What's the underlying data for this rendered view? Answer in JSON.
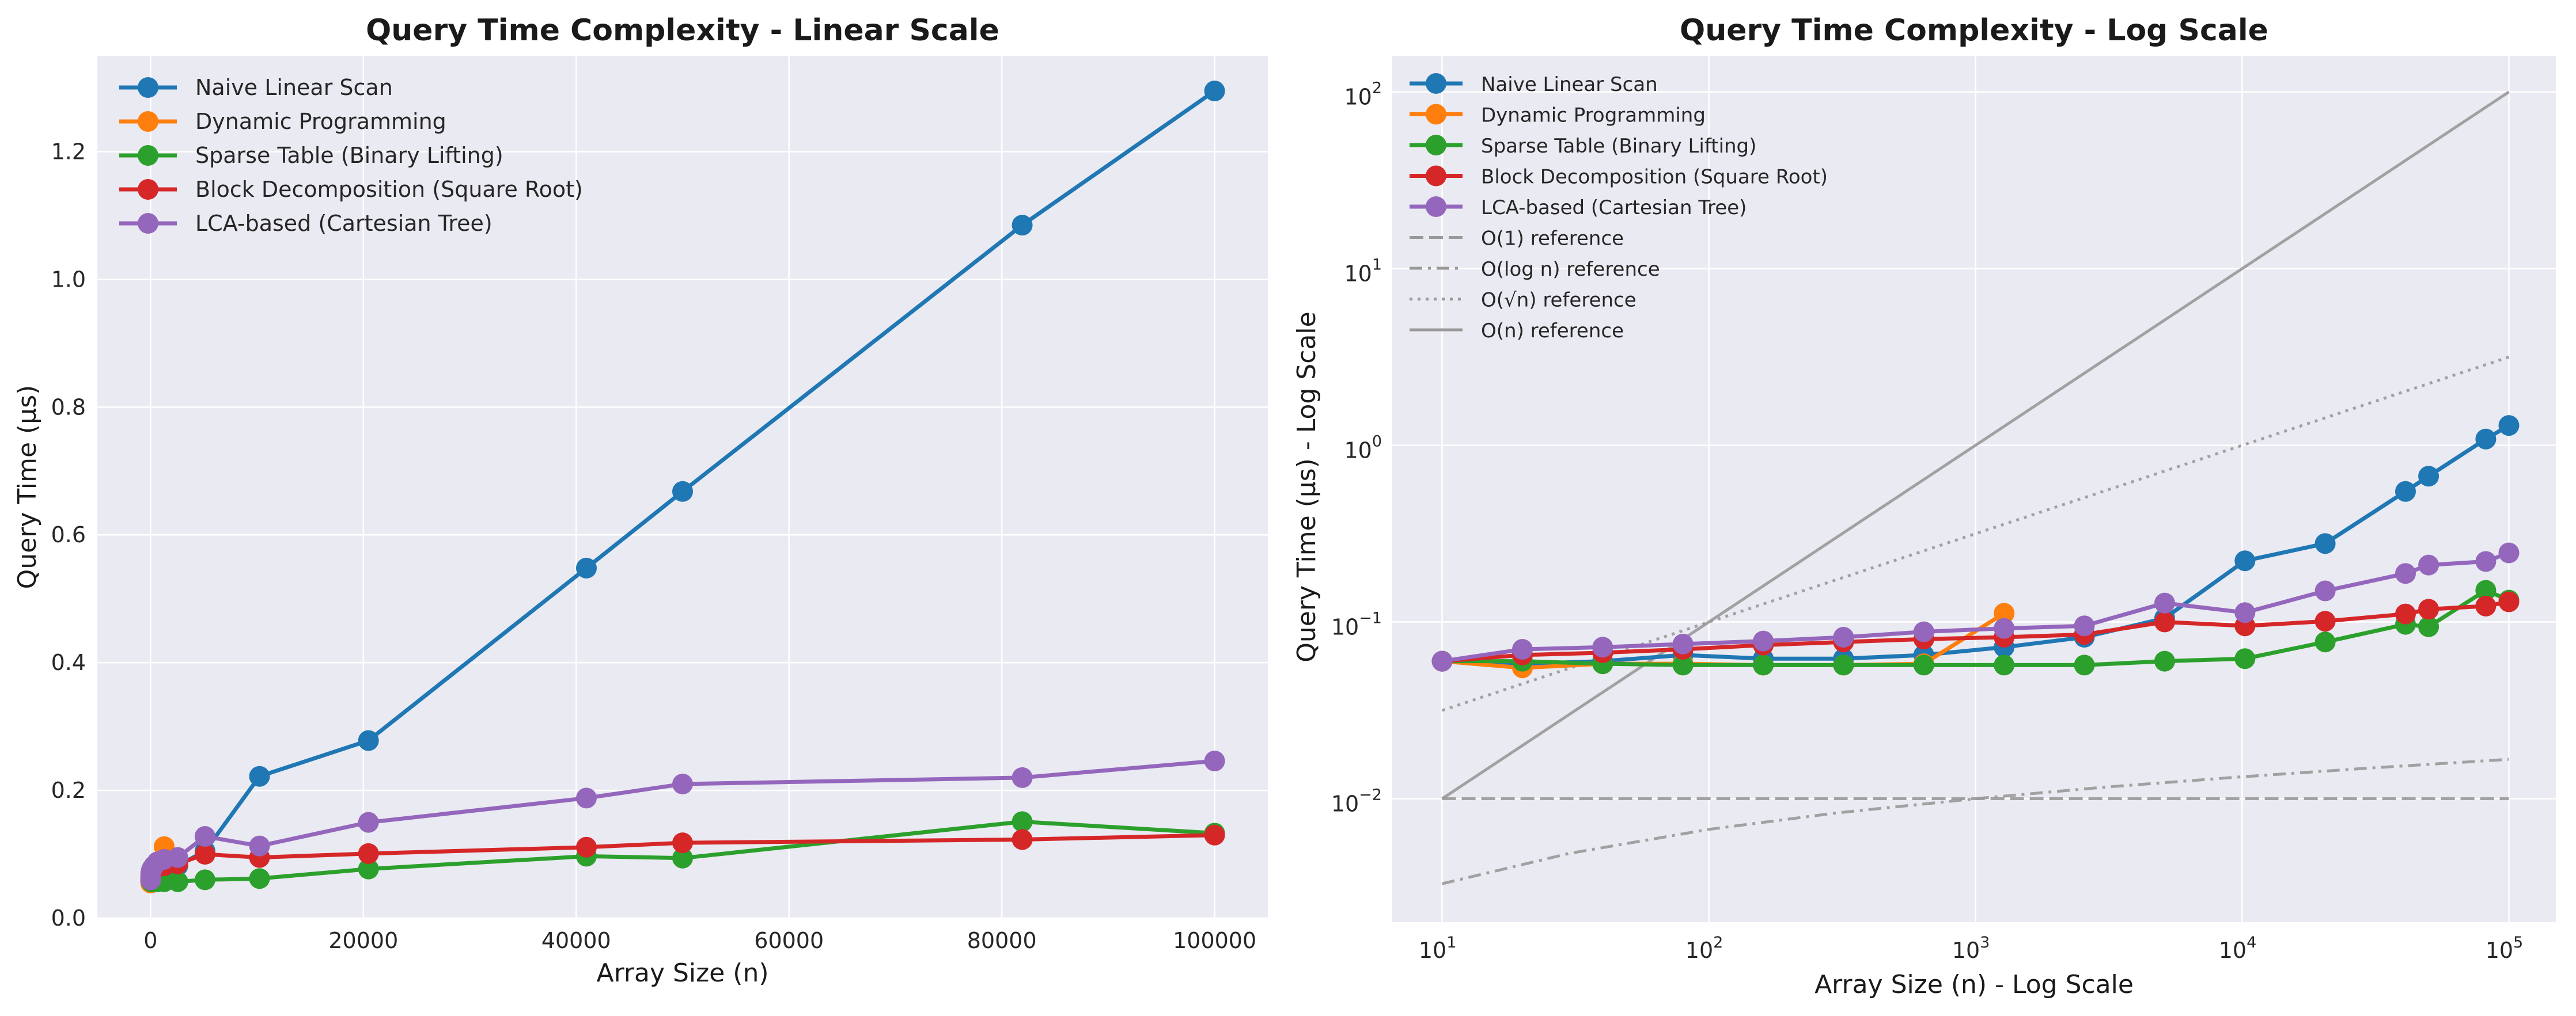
{
  "chart_data": [
    {
      "type": "line",
      "title": "Query Time Complexity - Linear Scale",
      "xlabel": "Array Size (n)",
      "ylabel": "Query Time (µs)",
      "xscale": "linear",
      "yscale": "linear",
      "xlim": [
        -5000,
        105000
      ],
      "ylim": [
        0,
        1.35
      ],
      "xticks": [
        0,
        20000,
        40000,
        60000,
        80000,
        100000
      ],
      "xtick_labels": [
        "0",
        "20000",
        "40000",
        "60000",
        "80000",
        "100000"
      ],
      "yticks": [
        0,
        0.2,
        0.4,
        0.6,
        0.8,
        1.0,
        1.2
      ],
      "ytick_labels": [
        "0.0",
        "0.2",
        "0.4",
        "0.6",
        "0.8",
        "1.0",
        "1.2"
      ],
      "grid": true,
      "legend_position": "top-left",
      "series": [
        {
          "name": "Naive Linear Scan",
          "color": "#1f77b4",
          "x": [
            10,
            20,
            40,
            80,
            160,
            320,
            640,
            1280,
            2560,
            5120,
            10240,
            20480,
            40960,
            50000,
            81920,
            100000
          ],
          "y": [
            0.06,
            0.058,
            0.06,
            0.065,
            0.062,
            0.062,
            0.065,
            0.072,
            0.082,
            0.105,
            0.222,
            0.278,
            0.548,
            0.668,
            1.085,
            1.295
          ]
        },
        {
          "name": "Dynamic Programming",
          "color": "#ff7f0e",
          "x": [
            10,
            20,
            40,
            80,
            160,
            320,
            640,
            1280
          ],
          "y": [
            0.06,
            0.055,
            0.058,
            0.058,
            0.057,
            0.057,
            0.058,
            0.112
          ]
        },
        {
          "name": "Sparse Table (Binary Lifting)",
          "color": "#2ca02c",
          "x": [
            10,
            20,
            40,
            80,
            160,
            320,
            640,
            1280,
            2560,
            5120,
            10240,
            20480,
            40960,
            50000,
            81920,
            100000
          ],
          "y": [
            0.06,
            0.06,
            0.058,
            0.057,
            0.057,
            0.057,
            0.057,
            0.057,
            0.057,
            0.06,
            0.062,
            0.077,
            0.097,
            0.094,
            0.151,
            0.133
          ]
        },
        {
          "name": "Block Decomposition (Square Root)",
          "color": "#d62728",
          "x": [
            10,
            20,
            40,
            80,
            160,
            320,
            640,
            1280,
            2560,
            5120,
            10240,
            20480,
            40960,
            50000,
            81920,
            100000
          ],
          "y": [
            0.06,
            0.065,
            0.067,
            0.07,
            0.074,
            0.077,
            0.08,
            0.082,
            0.085,
            0.1,
            0.095,
            0.101,
            0.111,
            0.118,
            0.123,
            0.13
          ]
        },
        {
          "name": "LCA-based (Cartesian Tree)",
          "color": "#9467bd",
          "x": [
            10,
            20,
            40,
            80,
            160,
            320,
            640,
            1280,
            2560,
            5120,
            10240,
            20480,
            40960,
            50000,
            81920,
            100000
          ],
          "y": [
            0.06,
            0.07,
            0.072,
            0.075,
            0.078,
            0.082,
            0.088,
            0.092,
            0.095,
            0.128,
            0.113,
            0.15,
            0.188,
            0.21,
            0.22,
            0.246
          ]
        }
      ]
    },
    {
      "type": "line",
      "title": "Query Time Complexity - Log Scale",
      "xlabel": "Array Size (n) - Log Scale",
      "ylabel": "Query Time (µs) - Log Scale",
      "xscale": "log",
      "yscale": "log",
      "xlim": [
        6.5,
        150000
      ],
      "ylim": [
        0.002,
        160
      ],
      "xticks": [
        10,
        100,
        1000,
        10000,
        100000
      ],
      "xtick_exponents": [
        "1",
        "2",
        "3",
        "4",
        "5"
      ],
      "yticks": [
        0.01,
        0.1,
        1,
        10,
        100
      ],
      "ytick_exponents": [
        "−2",
        "−1",
        "0",
        "1",
        "2"
      ],
      "tick_base": "10",
      "grid": true,
      "legend_position": "top-left",
      "series": [
        {
          "name": "Naive Linear Scan",
          "color": "#1f77b4",
          "x": [
            10,
            20,
            40,
            80,
            160,
            320,
            640,
            1280,
            2560,
            5120,
            10240,
            20480,
            40960,
            50000,
            81920,
            100000
          ],
          "y": [
            0.06,
            0.058,
            0.06,
            0.065,
            0.062,
            0.062,
            0.065,
            0.072,
            0.082,
            0.105,
            0.222,
            0.278,
            0.548,
            0.668,
            1.085,
            1.295
          ]
        },
        {
          "name": "Dynamic Programming",
          "color": "#ff7f0e",
          "x": [
            10,
            20,
            40,
            80,
            160,
            320,
            640,
            1280
          ],
          "y": [
            0.06,
            0.055,
            0.058,
            0.058,
            0.057,
            0.057,
            0.058,
            0.112
          ]
        },
        {
          "name": "Sparse Table (Binary Lifting)",
          "color": "#2ca02c",
          "x": [
            10,
            20,
            40,
            80,
            160,
            320,
            640,
            1280,
            2560,
            5120,
            10240,
            20480,
            40960,
            50000,
            81920,
            100000
          ],
          "y": [
            0.06,
            0.06,
            0.058,
            0.057,
            0.057,
            0.057,
            0.057,
            0.057,
            0.057,
            0.06,
            0.062,
            0.077,
            0.097,
            0.094,
            0.151,
            0.133
          ]
        },
        {
          "name": "Block Decomposition (Square Root)",
          "color": "#d62728",
          "x": [
            10,
            20,
            40,
            80,
            160,
            320,
            640,
            1280,
            2560,
            5120,
            10240,
            20480,
            40960,
            50000,
            81920,
            100000
          ],
          "y": [
            0.06,
            0.065,
            0.067,
            0.07,
            0.074,
            0.077,
            0.08,
            0.082,
            0.085,
            0.1,
            0.095,
            0.101,
            0.111,
            0.118,
            0.123,
            0.13
          ]
        },
        {
          "name": "LCA-based (Cartesian Tree)",
          "color": "#9467bd",
          "x": [
            10,
            20,
            40,
            80,
            160,
            320,
            640,
            1280,
            2560,
            5120,
            10240,
            20480,
            40960,
            50000,
            81920,
            100000
          ],
          "y": [
            0.06,
            0.07,
            0.072,
            0.075,
            0.078,
            0.082,
            0.088,
            0.092,
            0.095,
            0.128,
            0.113,
            0.15,
            0.188,
            0.21,
            0.22,
            0.246
          ]
        }
      ],
      "reference_lines": [
        {
          "name": "O(1) reference",
          "style": "dashed",
          "color": "#999999",
          "x": [
            10,
            100000
          ],
          "y": [
            0.01,
            0.01
          ]
        },
        {
          "name": "O(log n) reference",
          "style": "dashdot",
          "color": "#999999",
          "x": [
            10,
            30,
            100,
            300,
            1000,
            3000,
            10000,
            30000,
            100000
          ],
          "y": [
            0.0033,
            0.0049,
            0.0067,
            0.0083,
            0.01,
            0.0116,
            0.0133,
            0.0149,
            0.0167
          ]
        },
        {
          "name": "O(√n) reference",
          "style": "dotted",
          "color": "#999999",
          "x": [
            10,
            100000
          ],
          "y": [
            0.0316,
            3.16
          ]
        },
        {
          "name": "O(n) reference",
          "style": "solid",
          "color": "#999999",
          "x": [
            10,
            100000
          ],
          "y": [
            0.01,
            100
          ]
        }
      ]
    }
  ]
}
